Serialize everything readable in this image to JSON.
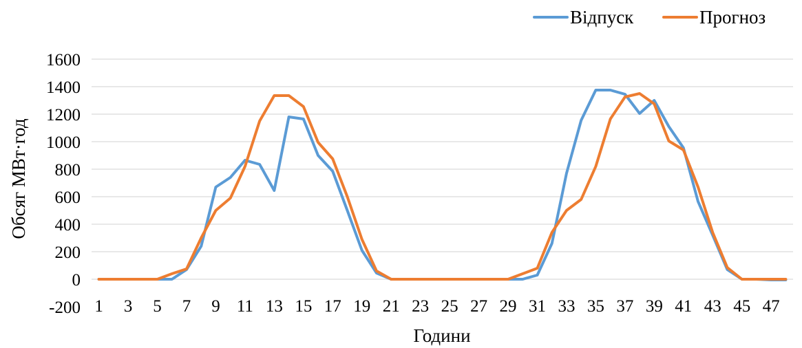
{
  "chart_data": {
    "type": "line",
    "title": "",
    "xlabel": "Години",
    "ylabel": "Обсяг МВт·год",
    "ylim": [
      -200,
      1600
    ],
    "yticks": [
      -200,
      0,
      200,
      400,
      600,
      800,
      1000,
      1200,
      1400,
      1600
    ],
    "x": [
      1,
      2,
      3,
      4,
      5,
      6,
      7,
      8,
      9,
      10,
      11,
      12,
      13,
      14,
      15,
      16,
      17,
      18,
      19,
      20,
      21,
      22,
      23,
      24,
      25,
      26,
      27,
      28,
      29,
      30,
      31,
      32,
      33,
      34,
      35,
      36,
      37,
      38,
      39,
      40,
      41,
      42,
      43,
      44,
      45,
      46,
      47,
      48
    ],
    "xtick_labels": [
      "1",
      "3",
      "5",
      "7",
      "9",
      "11",
      "13",
      "15",
      "17",
      "19",
      "21",
      "23",
      "25",
      "27",
      "29",
      "31",
      "33",
      "35",
      "37",
      "39",
      "41",
      "43",
      "45",
      "47"
    ],
    "grid": true,
    "legend_position": "top-right",
    "series": [
      {
        "name": "Відпуск",
        "color": "#5b9bd5",
        "values": [
          0,
          0,
          0,
          0,
          0,
          0,
          70,
          240,
          670,
          740,
          865,
          835,
          645,
          1180,
          1165,
          900,
          785,
          500,
          210,
          45,
          0,
          0,
          0,
          0,
          0,
          0,
          0,
          0,
          0,
          0,
          30,
          260,
          770,
          1155,
          1375,
          1375,
          1345,
          1205,
          1300,
          1110,
          955,
          565,
          320,
          70,
          0,
          0,
          -5,
          -5
        ]
      },
      {
        "name": "Прогноз",
        "color": "#ed7d31",
        "values": [
          0,
          0,
          0,
          0,
          0,
          40,
          75,
          300,
          500,
          590,
          820,
          1150,
          1335,
          1335,
          1255,
          995,
          875,
          600,
          290,
          60,
          0,
          0,
          0,
          0,
          0,
          0,
          0,
          0,
          0,
          40,
          80,
          340,
          500,
          580,
          820,
          1165,
          1325,
          1350,
          1275,
          1005,
          940,
          670,
          340,
          85,
          0,
          0,
          0,
          0
        ]
      }
    ]
  }
}
